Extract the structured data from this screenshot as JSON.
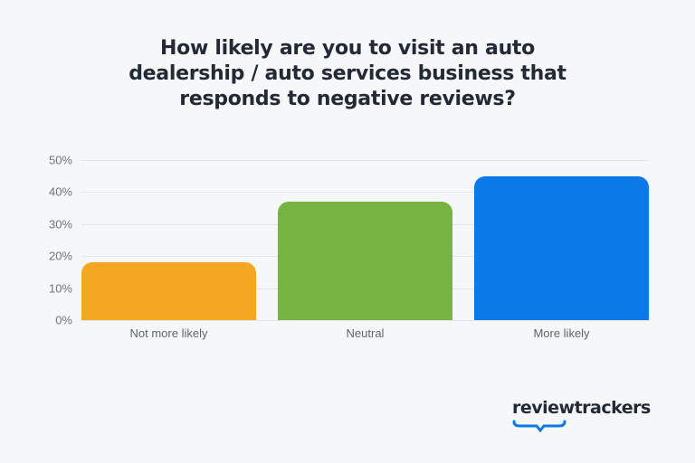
{
  "title_lines": [
    "How likely are you to visit an auto",
    "dealership / auto services business that",
    "responds to negative reviews?"
  ],
  "logo": {
    "text": "reviewtrackers",
    "accent": "#0a7ae6"
  },
  "chart_data": {
    "type": "bar",
    "title": "How likely are you to visit an auto dealership / auto services business that responds to negative reviews?",
    "categories": [
      "Not more likely",
      "Neutral",
      "More likely"
    ],
    "values": [
      18,
      37,
      45
    ],
    "colors": [
      "#f5a623",
      "#77b342",
      "#0b7ae6"
    ],
    "xlabel": "",
    "ylabel": "",
    "ylim": [
      0,
      50
    ],
    "yticks": [
      "0%",
      "10%",
      "20%",
      "30%",
      "40%",
      "50%"
    ],
    "grid": true
  }
}
